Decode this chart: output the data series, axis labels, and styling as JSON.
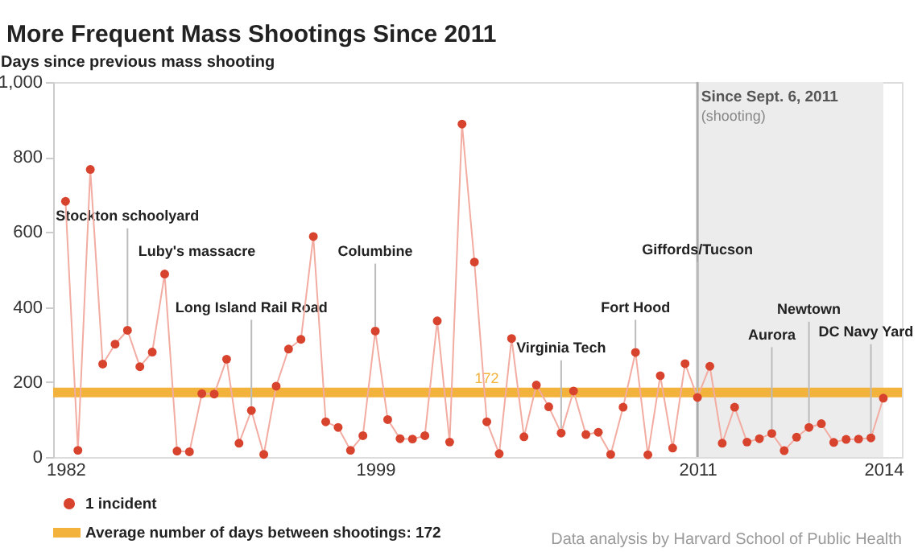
{
  "chart_data": {
    "type": "line",
    "title": "More Frequent Mass Shootings Since 2011",
    "ylabel": "Days since previous mass shooting",
    "categories": [
      "1982",
      null,
      null,
      null,
      null,
      null,
      null,
      null,
      null,
      null,
      null,
      null,
      null,
      null,
      null,
      null,
      null,
      null,
      null,
      null,
      null,
      null,
      null,
      null,
      null,
      "1999",
      null,
      null,
      null,
      null,
      null,
      null,
      null,
      null,
      null,
      null,
      null,
      null,
      null,
      null,
      null,
      null,
      null,
      null,
      null,
      null,
      null,
      null,
      null,
      null,
      null,
      "2011",
      null,
      null,
      null,
      null,
      null,
      null,
      null,
      null,
      null,
      null,
      null,
      null,
      null,
      null,
      "2014"
    ],
    "series": [
      {
        "name": "1 incident",
        "color": "#d8432e",
        "values": [
          682,
          18,
          767,
          248,
          301,
          338,
          241,
          280,
          488,
          16,
          14,
          169,
          168,
          261,
          37,
          124,
          7,
          189,
          288,
          314,
          588,
          94,
          79,
          18,
          57,
          336,
          100,
          49,
          48,
          57,
          363,
          40,
          888,
          520,
          94,
          9,
          316,
          54,
          192,
          134,
          64,
          176,
          60,
          66,
          7,
          133,
          279,
          6,
          217,
          24,
          249,
          159,
          242,
          37,
          133,
          40,
          49,
          63,
          17,
          53,
          79,
          89,
          39,
          47,
          48,
          51,
          157
        ]
      }
    ],
    "ylim": [
      0,
      1000
    ],
    "yticks": [
      0,
      200,
      400,
      600,
      800,
      {
        "value": 1000,
        "label": "1,000"
      }
    ],
    "ref_lines": [
      {
        "axis": "y",
        "value": 172,
        "label": "Average number of days between shootings: 172",
        "color": "#f3b23c"
      }
    ],
    "bands": [
      {
        "axis": "x",
        "from": "2011",
        "to": "2014",
        "label": "Since Sept. 6, 2011",
        "color": "#ececec"
      }
    ],
    "annotations": [
      {
        "text": "Stockton schoolyard",
        "y": 338
      },
      "Luby's massacre",
      {
        "text": "Long Island Rail Road",
        "y": 124
      },
      {
        "text": "Columbine",
        "y": 336
      },
      {
        "text": "Virginia Tech",
        "y": 64
      },
      {
        "text": "Fort Hood",
        "y": 279
      },
      {
        "text": "Giffords/Tucson",
        "y": 159
      },
      {
        "text": "Aurora",
        "y": 63
      },
      {
        "text": "Newtown",
        "y": 79
      },
      {
        "text": "DC Navy Yard",
        "y": 51
      },
      "(shooting)",
      "Data analysis by Harvard School of Public Health",
      {
        "text": "172",
        "y": 172
      }
    ],
    "grid": false,
    "legend": "bottom left",
    "marker": "circle",
    "line_style": "solid"
  }
}
